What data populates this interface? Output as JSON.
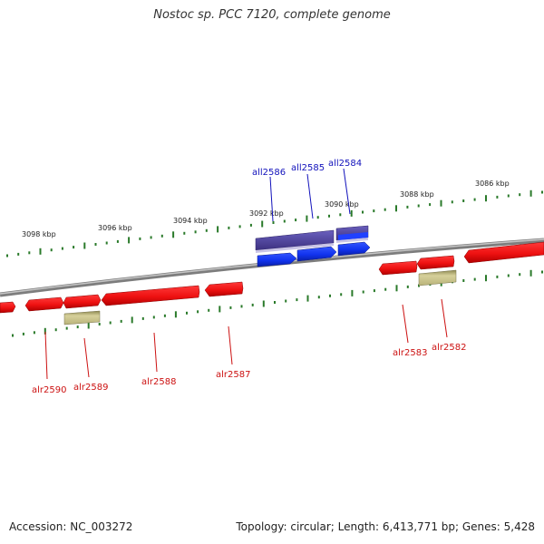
{
  "title": "Nostoc sp. PCC 7120, complete genome",
  "footer": {
    "accession": "Accession: NC_003272",
    "summary": "Topology: circular; Length: 6,413,771 bp; Genes: 5,428"
  },
  "colors": {
    "backbone": "#8a8a8a",
    "forward_gene": "#ee1111",
    "reverse_gene": "#1133ee",
    "reverse_gene_dark": "#4b3f9a",
    "rna_gene": "#c8c28a",
    "forward_label": "#cc1111",
    "reverse_label": "#1111bb",
    "tick": "#2a7a2a"
  },
  "scale": {
    "unit": "kbp",
    "labels": [
      "3086 kbp",
      "3088 kbp",
      "3090 kbp",
      "3092 kbp",
      "3094 kbp",
      "3096 kbp",
      "3098 kbp"
    ]
  },
  "genes": {
    "reverse_strand": [
      {
        "name": "all2586"
      },
      {
        "name": "all2585"
      },
      {
        "name": "all2584"
      }
    ],
    "forward_strand": [
      {
        "name": "alr2590"
      },
      {
        "name": "alr2589"
      },
      {
        "name": "alr2588"
      },
      {
        "name": "alr2587"
      },
      {
        "name": "alr2583"
      },
      {
        "name": "alr2582"
      }
    ]
  }
}
